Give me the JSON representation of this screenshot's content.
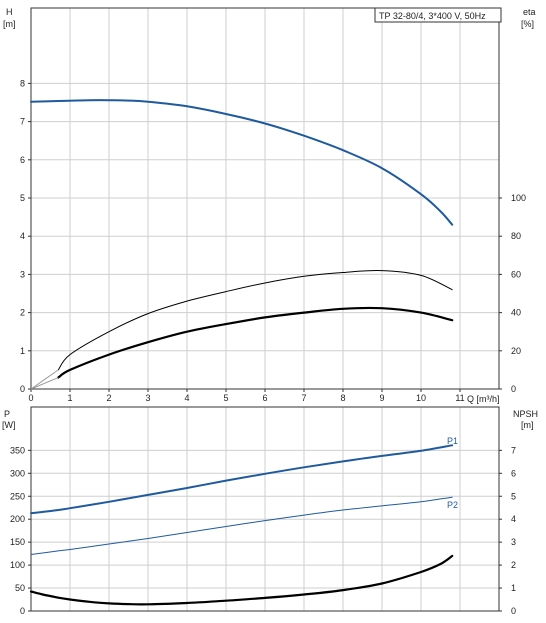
{
  "title": "TP 32-80/4, 3*400 V, 50Hz",
  "colors": {
    "blue": "#1f5a9e",
    "black": "#000000",
    "grid": "#cfcfcf"
  },
  "chart_data": [
    {
      "name": "head-efficiency",
      "type": "line",
      "xlabel": "Q [m³/h]",
      "left_axis": {
        "symbol": "H",
        "unit": "[m]",
        "ylim": [
          0,
          9
        ],
        "ticks": [
          0,
          1,
          2,
          3,
          4,
          5,
          6,
          7,
          8
        ]
      },
      "right_axis": {
        "symbol": "eta",
        "unit": "[%]",
        "ylim": [
          0,
          180
        ],
        "ticks": [
          0,
          20,
          40,
          60,
          80,
          100
        ]
      },
      "x_ticks": [
        0,
        1,
        2,
        3,
        4,
        5,
        6,
        7,
        8,
        9,
        10,
        11
      ],
      "xlim": [
        0,
        12
      ],
      "grid": true,
      "series": [
        {
          "axis": "left",
          "color": "#1f5a9e",
          "width": 2,
          "x": [
            0,
            0.7,
            1.5,
            2,
            2.5,
            3,
            4,
            5,
            6,
            7,
            8,
            9,
            10,
            10.5,
            10.8
          ],
          "y": [
            7.52,
            7.54,
            7.56,
            7.56,
            7.55,
            7.52,
            7.4,
            7.2,
            6.95,
            6.63,
            6.25,
            5.78,
            5.1,
            4.65,
            4.3
          ]
        },
        {
          "axis": "right",
          "color": "#000000",
          "width": 1,
          "x": [
            0.7,
            1,
            2,
            3,
            4,
            5,
            6,
            7,
            8,
            9,
            10,
            10.8
          ],
          "y": [
            10,
            18,
            30,
            39.5,
            46,
            51,
            55.5,
            59,
            61,
            62,
            59.5,
            52
          ]
        },
        {
          "axis": "right",
          "color": "#000000",
          "width": 2.2,
          "x": [
            0.7,
            1,
            2,
            3,
            4,
            5,
            6,
            7,
            8,
            9,
            10,
            10.8
          ],
          "y": [
            6,
            10,
            18,
            24.5,
            30,
            34,
            37.5,
            40,
            42,
            42.3,
            40,
            36
          ]
        }
      ]
    },
    {
      "name": "power-npsh",
      "type": "line",
      "left_axis": {
        "symbol": "P",
        "unit": "[W]",
        "ylim": [
          0,
          400
        ],
        "ticks": [
          0,
          50,
          100,
          150,
          200,
          250,
          300,
          350
        ]
      },
      "right_axis": {
        "symbol": "NPSH",
        "unit": "[m]",
        "ylim": [
          0,
          8
        ],
        "ticks": [
          0,
          1,
          2,
          3,
          4,
          5,
          6,
          7
        ]
      },
      "xlim": [
        0,
        12
      ],
      "grid": true,
      "series": [
        {
          "name": "P1",
          "axis": "left",
          "color": "#1f5a9e",
          "width": 2,
          "x": [
            0,
            0.7,
            1,
            2,
            3,
            4,
            5,
            6,
            7,
            8,
            9,
            10,
            10.8
          ],
          "y": [
            213,
            220,
            224,
            238,
            253,
            268,
            284,
            299,
            313,
            326,
            338,
            349,
            361
          ]
        },
        {
          "name": "P2",
          "axis": "left",
          "color": "#1f5a9e",
          "width": 1,
          "x": [
            0,
            0.7,
            1,
            2,
            3,
            4,
            5,
            6,
            7,
            8,
            9,
            10,
            10.8
          ],
          "y": [
            123,
            131,
            134,
            146,
            158,
            171,
            184,
            197,
            209,
            220,
            229,
            238,
            248
          ]
        },
        {
          "axis": "right",
          "color": "#000000",
          "width": 2.2,
          "x": [
            0,
            0.3,
            0.7,
            1,
            1.5,
            2,
            2.5,
            3,
            4,
            5,
            6,
            7,
            8,
            9,
            10,
            10.5,
            10.8
          ],
          "y": [
            0.85,
            0.72,
            0.58,
            0.5,
            0.4,
            0.33,
            0.3,
            0.29,
            0.35,
            0.45,
            0.57,
            0.72,
            0.91,
            1.2,
            1.7,
            2.05,
            2.4
          ]
        }
      ]
    }
  ]
}
